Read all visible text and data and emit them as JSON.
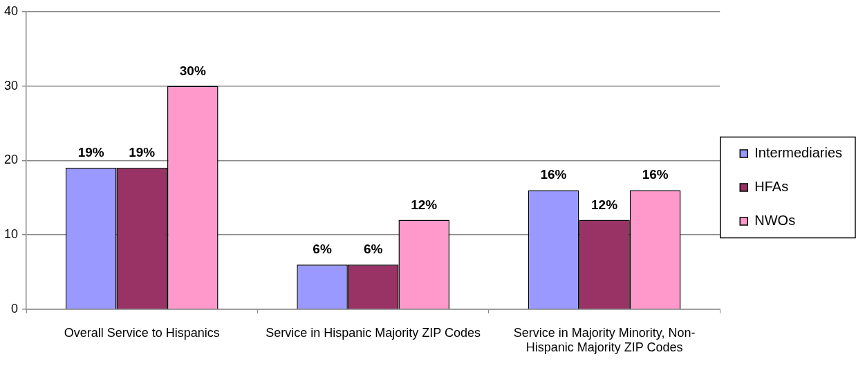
{
  "chart_data": {
    "type": "bar",
    "categories": [
      "Overall Service to Hispanics",
      "Service in Hispanic Majority ZIP Codes",
      "Service in Majority Minority, Non-Hispanic Majority ZIP Codes"
    ],
    "series": [
      {
        "name": "Intermediaries",
        "color": "#9999ff",
        "values": [
          19,
          6,
          16
        ],
        "value_labels": [
          "19%",
          "6%",
          "16%"
        ]
      },
      {
        "name": "HFAs",
        "color": "#993366",
        "values": [
          19,
          6,
          12
        ],
        "value_labels": [
          "19%",
          "6%",
          "12%"
        ]
      },
      {
        "name": "NWOs",
        "color": "#ff99cc",
        "values": [
          30,
          12,
          16
        ],
        "value_labels": [
          "30%",
          "12%",
          "16%"
        ]
      }
    ],
    "ylim": [
      0,
      40
    ],
    "yticks": [
      0,
      10,
      20,
      30,
      40
    ],
    "grid": "y",
    "legend": "right"
  }
}
